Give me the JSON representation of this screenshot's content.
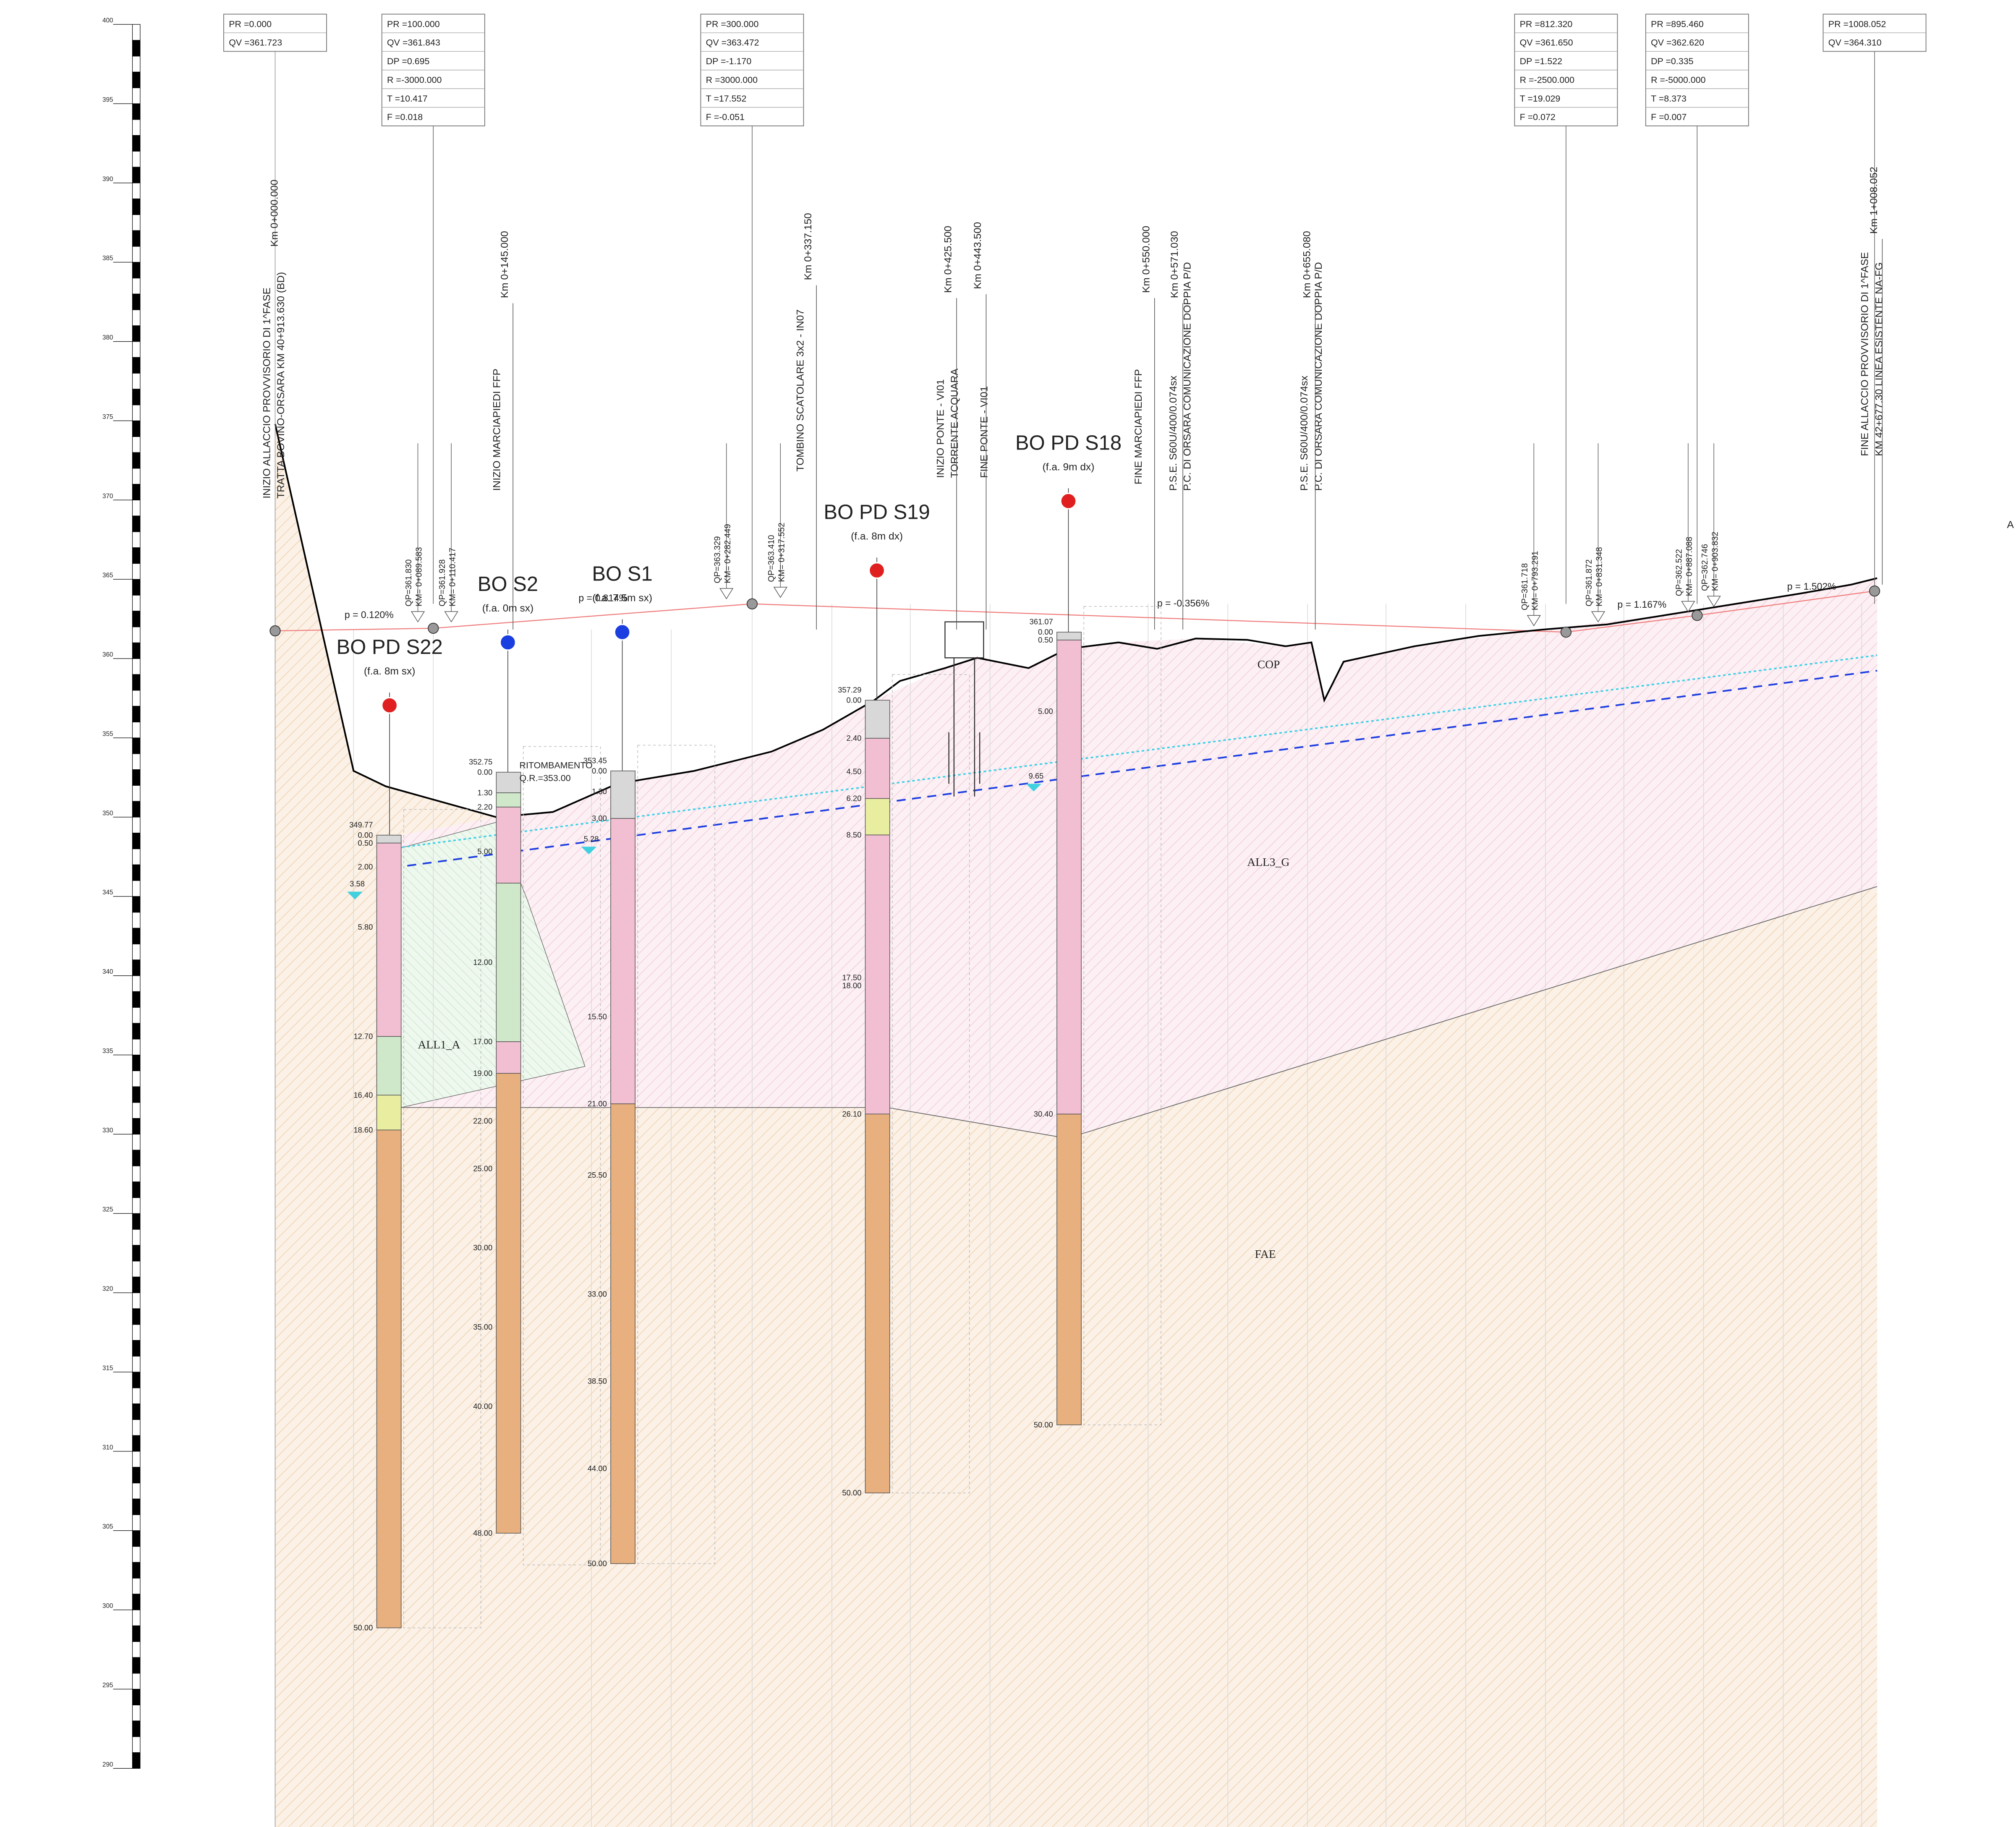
{
  "scale": {
    "ticks": [
      400,
      395,
      390,
      385,
      380,
      375,
      370,
      365,
      360,
      355,
      350,
      345,
      340,
      335,
      330,
      325,
      320,
      315,
      310,
      305,
      300,
      295,
      290
    ]
  },
  "stations": [
    {
      "lines": [
        "PR =0.000",
        "QV =361.723"
      ]
    },
    {
      "lines": [
        "PR =100.000",
        "QV =361.843",
        "DP =0.695",
        "R =-3000.000",
        "T =10.417",
        "F =0.018"
      ]
    },
    {
      "lines": [
        "PR =300.000",
        "QV =363.472",
        "DP =-1.170",
        "R =3000.000",
        "T =17.552",
        "F =-0.051"
      ]
    },
    {
      "lines": [
        "PR =812.320",
        "QV =361.650",
        "DP =1.522",
        "R =-2500.000",
        "T =19.029",
        "F =0.072"
      ]
    },
    {
      "lines": [
        "PR =895.460",
        "QV =362.620",
        "DP =0.335",
        "R =-5000.000",
        "T =8.373",
        "F =0.007"
      ]
    },
    {
      "lines": [
        "PR =1008.052",
        "QV =364.310"
      ]
    }
  ],
  "annotations": [
    {
      "km": "Km 0+000.000",
      "lines": [
        "INIZIO ALLACCIO PROVVISORIO DI 1^FASE",
        "TRATTA BOVINO-ORSARA KM 40+913.630 (BD)"
      ]
    },
    {
      "km": "Km 0+145.000",
      "lines": [
        "INIZIO MARCIAPIEDI FFP"
      ]
    },
    {
      "km": "Km 0+337.150",
      "lines": [
        "TOMBINO SCATOLARE 3x2 - IN07"
      ]
    },
    {
      "km": "Km 0+425.500",
      "lines": [
        "INIZIO PONTE - VI01",
        "TORRENTE ACQUARA"
      ]
    },
    {
      "km": "Km 0+443.500",
      "lines": [
        "FINE PONTE - VI01"
      ]
    },
    {
      "km": "Km 0+550.000",
      "lines": [
        "FINE MARCIAPIEDI FFP"
      ]
    },
    {
      "km": "Km 0+571.030",
      "lines": [
        "P.S.E. S60U/400/0.074sx",
        "P.C. DI ORSARA COMUNICAZIONE DOPPIA P/D"
      ]
    },
    {
      "km": "Km 0+655.080",
      "lines": [
        "P.S.E. S60U/400/0.074sx",
        "P.C. DI ORSARA COMUNICAZIONE DOPPIA P/D"
      ]
    },
    {
      "km": "Km 1+008.052",
      "lines": [
        "FINE ALLACCIO PROVVISORIO DI 1^FASE",
        "KM 42+677.30 LINEA ESISTENTE NA-FG"
      ]
    }
  ],
  "grade_points": [
    {
      "lines": [
        "QP=361.830",
        "KM= 0+089.583"
      ]
    },
    {
      "lines": [
        "QP=361.928",
        "KM= 0+110.417"
      ]
    },
    {
      "lines": [
        "QP=363.329",
        "KM= 0+282.449"
      ]
    },
    {
      "lines": [
        "QP=363.410",
        "KM= 0+317.552"
      ]
    },
    {
      "lines": [
        "QP=361.718",
        "KM= 0+793.291"
      ]
    },
    {
      "lines": [
        "QP=361.872",
        "KM= 0+831.348"
      ]
    },
    {
      "lines": [
        "QP=362.522",
        "KM= 0+887.088"
      ]
    },
    {
      "lines": [
        "QP=362.746",
        "KM= 0+903.832"
      ]
    }
  ],
  "slopes": [
    "p = 0.120%",
    "p = 0.814%",
    "p = -0.356%",
    "p = 1.167%",
    "p = 1.502%"
  ],
  "boreholes": [
    {
      "name": "BO PD S22",
      "note": "(f.a. 8m sx)",
      "top_label": "349.77",
      "depths": [
        "0.00",
        "0.50",
        "2.00",
        "5.80",
        "12.70",
        "16.40",
        "18.60",
        "50.00"
      ]
    },
    {
      "name": "BO S2",
      "note": "(f.a. 0m sx)",
      "top_label": "352.75",
      "depths": [
        "0.00",
        "1.30",
        "2.20",
        "5.00",
        "12.00",
        "17.00",
        "19.00",
        "22.00",
        "25.00",
        "30.00",
        "35.00",
        "40.00",
        "48.00"
      ]
    },
    {
      "name": "BO S1",
      "note": "(f.a. 7.5m sx)",
      "top_label": "353.45",
      "depths": [
        "0.00",
        "1.30",
        "3.00",
        "15.50",
        "21.00",
        "25.50",
        "33.00",
        "38.50",
        "44.00",
        "50.00"
      ]
    },
    {
      "name": "BO PD S19",
      "note": "(f.a. 8m dx)",
      "top_label": "357.29",
      "depths": [
        "0.00",
        "2.40",
        "4.50",
        "6.20",
        "8.50",
        "17.50",
        "18.00",
        "26.10",
        "50.00"
      ]
    },
    {
      "name": "BO PD S18",
      "note": "(f.a. 9m dx)",
      "top_label": "361.07",
      "depths": [
        "0.00",
        "0.50",
        "5.00",
        "30.40",
        "50.00"
      ]
    }
  ],
  "water_levels": [
    "3.58",
    "5.28",
    "9.65"
  ],
  "layers": [
    "COP",
    "ALL3_G",
    "FAE",
    "ALL1_A"
  ],
  "notes": {
    "backfill": "RITOMBAMENTO",
    "backfill_level": "Q.R.=353.00",
    "edge": "A"
  }
}
